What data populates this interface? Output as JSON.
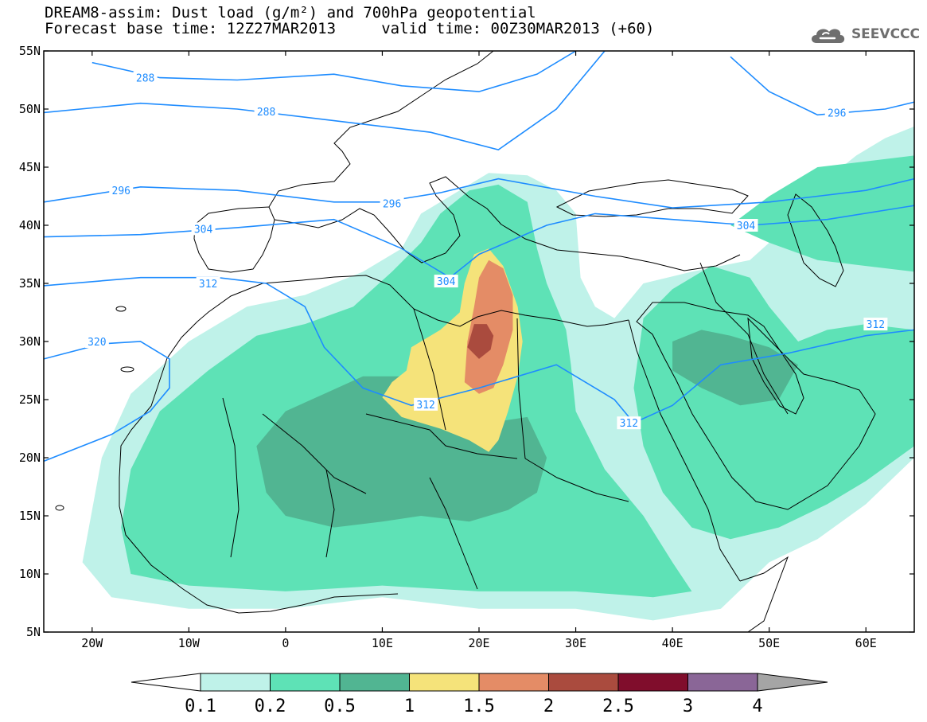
{
  "title": {
    "line1": "DREAM8-assim: Dust load (g/m²) and 700hPa geopotential",
    "line2": "Forecast base time: 12Z27MAR2013     valid time: 00Z30MAR2013 (+60)"
  },
  "logo": {
    "text": "SEEVCCC",
    "icon": "cloud-icon"
  },
  "map": {
    "lon_range": [
      -25,
      65
    ],
    "lat_range": [
      5,
      55
    ],
    "lon_ticks": [
      {
        "value": -20,
        "label": "20W"
      },
      {
        "value": -10,
        "label": "10W"
      },
      {
        "value": 0,
        "label": "0"
      },
      {
        "value": 10,
        "label": "10E"
      },
      {
        "value": 20,
        "label": "20E"
      },
      {
        "value": 30,
        "label": "30E"
      },
      {
        "value": 40,
        "label": "40E"
      },
      {
        "value": 50,
        "label": "50E"
      },
      {
        "value": 60,
        "label": "60E"
      }
    ],
    "lat_ticks": [
      {
        "value": 55,
        "label": "55N"
      },
      {
        "value": 50,
        "label": "50N"
      },
      {
        "value": 45,
        "label": "45N"
      },
      {
        "value": 40,
        "label": "40N"
      },
      {
        "value": 35,
        "label": "35N"
      },
      {
        "value": 30,
        "label": "30N"
      },
      {
        "value": 25,
        "label": "25N"
      },
      {
        "value": 20,
        "label": "20N"
      },
      {
        "value": 15,
        "label": "15N"
      },
      {
        "value": 10,
        "label": "10N"
      },
      {
        "value": 5,
        "label": "5N"
      }
    ],
    "geopotential_contours": [
      {
        "level": "288",
        "points": [
          [
            -20,
            54
          ],
          [
            -13,
            52.7
          ],
          [
            -5,
            52.5
          ],
          [
            5,
            53
          ],
          [
            12,
            52
          ],
          [
            20,
            51.5
          ],
          [
            26,
            53
          ],
          [
            30,
            55
          ]
        ],
        "labels": [
          {
            "lon": -14.5,
            "lat": 52.7
          }
        ]
      },
      {
        "level": "288",
        "points": [
          [
            -25,
            49.7
          ],
          [
            -15,
            50.5
          ],
          [
            -5,
            50
          ],
          [
            5,
            49
          ],
          [
            15,
            48
          ],
          [
            22,
            46.5
          ],
          [
            28,
            50
          ],
          [
            33,
            55
          ]
        ],
        "labels": [
          {
            "lon": -2,
            "lat": 49.8
          }
        ]
      },
      {
        "level": "296",
        "points": [
          [
            -25,
            42
          ],
          [
            -15,
            43.3
          ],
          [
            -5,
            43
          ],
          [
            5,
            42
          ],
          [
            10,
            42
          ],
          [
            16,
            42.8
          ],
          [
            22,
            44
          ],
          [
            32,
            42.5
          ],
          [
            40,
            41.5
          ],
          [
            50,
            42
          ],
          [
            60,
            43
          ],
          [
            65,
            44
          ]
        ],
        "labels": [
          {
            "lon": -17,
            "lat": 43
          },
          {
            "lon": 11,
            "lat": 41.9
          }
        ]
      },
      {
        "level": "296",
        "points": [
          [
            46,
            54.5
          ],
          [
            50,
            51.5
          ],
          [
            55,
            49.5
          ],
          [
            62,
            50
          ],
          [
            67,
            51
          ]
        ],
        "labels": [
          {
            "lon": 57,
            "lat": 49.7
          }
        ]
      },
      {
        "level": "304",
        "points": [
          [
            -25,
            39
          ],
          [
            -15,
            39.2
          ],
          [
            -5,
            39.8
          ],
          [
            5,
            40.5
          ],
          [
            12,
            38
          ],
          [
            17,
            35.5
          ],
          [
            20,
            37.5
          ],
          [
            27,
            40
          ],
          [
            32,
            41
          ],
          [
            40,
            40.5
          ],
          [
            48,
            40
          ],
          [
            56,
            40.5
          ],
          [
            65,
            41.7
          ]
        ],
        "labels": [
          {
            "lon": -8.5,
            "lat": 39.7
          },
          {
            "lon": 16.6,
            "lat": 35.2
          },
          {
            "lon": 47.6,
            "lat": 40
          }
        ]
      },
      {
        "level": "312",
        "points": [
          [
            -25,
            34.8
          ],
          [
            -15,
            35.5
          ],
          [
            -7,
            35.5
          ],
          [
            -2,
            35
          ],
          [
            2,
            33
          ],
          [
            4,
            29.5
          ],
          [
            8,
            26
          ],
          [
            13,
            24.5
          ],
          [
            20,
            26
          ],
          [
            28,
            28
          ],
          [
            34,
            25
          ],
          [
            36,
            23
          ],
          [
            40,
            24.5
          ],
          [
            45,
            28
          ],
          [
            52,
            29
          ],
          [
            60,
            30.5
          ],
          [
            65,
            31
          ]
        ],
        "labels": [
          {
            "lon": -8,
            "lat": 35
          },
          {
            "lon": 14.5,
            "lat": 24.6
          },
          {
            "lon": 35.5,
            "lat": 23
          },
          {
            "lon": 61,
            "lat": 31.5
          }
        ]
      },
      {
        "level": "320",
        "points": [
          [
            -25,
            28.5
          ],
          [
            -19,
            29.8
          ],
          [
            -15,
            30
          ],
          [
            -12,
            28.5
          ],
          [
            -12,
            26
          ],
          [
            -14,
            24
          ],
          [
            -18,
            22
          ],
          [
            -25,
            19.7
          ]
        ],
        "labels": [
          {
            "lon": -19.5,
            "lat": 30
          }
        ]
      }
    ],
    "dust_regions": [
      {
        "class": 1,
        "points": [
          [
            -21,
            11
          ],
          [
            -19,
            20
          ],
          [
            -16,
            25.5
          ],
          [
            -10,
            30
          ],
          [
            -4,
            33
          ],
          [
            2,
            34
          ],
          [
            8,
            36
          ],
          [
            12,
            38
          ],
          [
            14,
            41
          ],
          [
            17,
            42.5
          ],
          [
            21,
            44.5
          ],
          [
            25,
            44.3
          ],
          [
            28,
            43
          ],
          [
            30,
            41
          ],
          [
            30.5,
            35.5
          ],
          [
            32,
            33
          ],
          [
            34,
            32
          ],
          [
            37,
            35
          ],
          [
            42,
            36
          ],
          [
            48,
            37
          ],
          [
            52,
            40
          ],
          [
            56,
            44
          ],
          [
            59,
            46
          ],
          [
            62,
            47.5
          ],
          [
            65,
            48.5
          ],
          [
            65,
            20
          ],
          [
            60,
            16
          ],
          [
            55,
            13
          ],
          [
            50,
            11
          ],
          [
            45,
            7
          ],
          [
            38,
            6
          ],
          [
            30,
            7
          ],
          [
            20,
            7
          ],
          [
            10,
            8
          ],
          [
            0,
            7
          ],
          [
            -10,
            7
          ],
          [
            -18,
            8
          ]
        ]
      },
      {
        "class": 2,
        "points": [
          [
            -17,
            14
          ],
          [
            -16,
            19
          ],
          [
            -13,
            24
          ],
          [
            -8,
            27.5
          ],
          [
            -3,
            30.5
          ],
          [
            2,
            31.5
          ],
          [
            7,
            33
          ],
          [
            11,
            36
          ],
          [
            14,
            38.5
          ],
          [
            16,
            41
          ],
          [
            19,
            43
          ],
          [
            22,
            43.5
          ],
          [
            25,
            42
          ],
          [
            26,
            38
          ],
          [
            27,
            35
          ],
          [
            29,
            31
          ],
          [
            29.5,
            28
          ],
          [
            30,
            24
          ],
          [
            33,
            19
          ],
          [
            37,
            15
          ],
          [
            40,
            11
          ],
          [
            42,
            8.5
          ],
          [
            38,
            8
          ],
          [
            30,
            8.5
          ],
          [
            20,
            8.5
          ],
          [
            10,
            9
          ],
          [
            0,
            8.5
          ],
          [
            -10,
            9
          ],
          [
            -16,
            10
          ]
        ]
      },
      {
        "class": 2,
        "points": [
          [
            37,
            32
          ],
          [
            40,
            34.5
          ],
          [
            44,
            36.5
          ],
          [
            48,
            35.5
          ],
          [
            50,
            33
          ],
          [
            53,
            30
          ],
          [
            56,
            31
          ],
          [
            60,
            31.5
          ],
          [
            65,
            31
          ],
          [
            65,
            21
          ],
          [
            60,
            18
          ],
          [
            56,
            16
          ],
          [
            51,
            14
          ],
          [
            46,
            13
          ],
          [
            42,
            14
          ],
          [
            39,
            17
          ],
          [
            37,
            21
          ],
          [
            36,
            26
          ]
        ]
      },
      {
        "class": 2,
        "points": [
          [
            46,
            40
          ],
          [
            50,
            42.5
          ],
          [
            55,
            45
          ],
          [
            60,
            45.5
          ],
          [
            65,
            46
          ],
          [
            65,
            36
          ],
          [
            60,
            36.5
          ],
          [
            55,
            37
          ],
          [
            50,
            38.5
          ]
        ]
      },
      {
        "class": 3,
        "points": [
          [
            -3,
            21
          ],
          [
            0,
            24
          ],
          [
            4,
            25.5
          ],
          [
            8,
            27
          ],
          [
            12,
            27
          ],
          [
            14,
            26
          ],
          [
            18,
            24
          ],
          [
            21,
            23
          ],
          [
            25,
            23.5
          ],
          [
            27,
            20
          ],
          [
            26,
            17
          ],
          [
            23,
            15.5
          ],
          [
            19,
            14.5
          ],
          [
            14,
            15
          ],
          [
            10,
            14.5
          ],
          [
            5,
            14
          ],
          [
            0,
            15
          ],
          [
            -2,
            17
          ]
        ]
      },
      {
        "class": 3,
        "points": [
          [
            40,
            30
          ],
          [
            43,
            31
          ],
          [
            46,
            30.5
          ],
          [
            50,
            29.5
          ],
          [
            53,
            28
          ],
          [
            51,
            25
          ],
          [
            47,
            24.5
          ],
          [
            43,
            26
          ],
          [
            40,
            27.5
          ]
        ]
      },
      {
        "class": 4,
        "points": [
          [
            10,
            25.2
          ],
          [
            12,
            23.5
          ],
          [
            16,
            22.5
          ],
          [
            19,
            21.5
          ],
          [
            21,
            20.5
          ],
          [
            22,
            21.5
          ],
          [
            23,
            24
          ],
          [
            24,
            27
          ],
          [
            24.5,
            30
          ],
          [
            24,
            33
          ],
          [
            22.5,
            36.5
          ],
          [
            21,
            38
          ],
          [
            19.5,
            37.5
          ],
          [
            18.5,
            35
          ],
          [
            18,
            32.5
          ],
          [
            16,
            31
          ],
          [
            13,
            29.5
          ],
          [
            12.5,
            27.5
          ],
          [
            11,
            26.5
          ]
        ]
      },
      {
        "class": 5,
        "points": [
          [
            18.5,
            26.5
          ],
          [
            20,
            25.5
          ],
          [
            21.5,
            26
          ],
          [
            22.5,
            28
          ],
          [
            23.5,
            31
          ],
          [
            23.5,
            34
          ],
          [
            22.5,
            36.3
          ],
          [
            21,
            37
          ],
          [
            20,
            35.5
          ],
          [
            19.5,
            33
          ],
          [
            18.8,
            30
          ]
        ]
      },
      {
        "class": 6,
        "points": [
          [
            18.8,
            29.5
          ],
          [
            20,
            28.5
          ],
          [
            21.2,
            29.3
          ],
          [
            21.5,
            30.5
          ],
          [
            20.8,
            31.5
          ],
          [
            19.5,
            31.5
          ]
        ]
      }
    ]
  },
  "colorbar": {
    "classes": [
      {
        "color": "#bff2e9",
        "label": "0.1"
      },
      {
        "color": "#5ee2b6",
        "label": "0.2"
      },
      {
        "color": "#51b592",
        "label": "0.5"
      },
      {
        "color": "#f5e37a",
        "label": "1"
      },
      {
        "color": "#e48c66",
        "label": "1.5"
      },
      {
        "color": "#aa4b3e",
        "label": "2"
      },
      {
        "color": "#800d2c",
        "label": "2.5"
      },
      {
        "color": "#8a6697",
        "label": "3"
      },
      {
        "color": "#a5a5a5",
        "label": "4"
      }
    ],
    "below_color": "#ffffff"
  },
  "colors": {
    "contour": "#1e8cff",
    "coast": "#000000",
    "frame": "#000000"
  }
}
